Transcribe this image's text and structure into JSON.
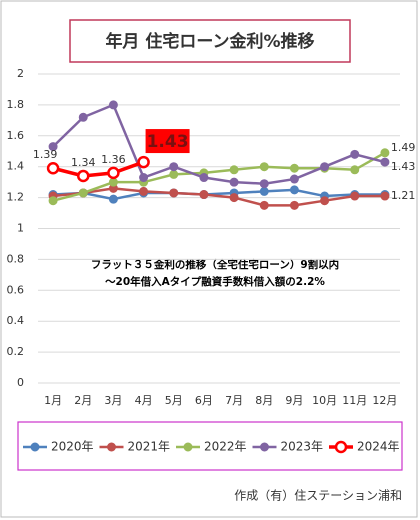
{
  "chart_data": {
    "type": "line",
    "title": "年月 住宅ローン金利%推移",
    "annotations": [
      "フラット３５金利の推移（全宅住宅ローン）9割以内",
      "～20年借入Aタイプ融資手数料借入額の2.2%"
    ],
    "footer": "作成（有）住ステーション浦和",
    "categories": [
      "1月",
      "2月",
      "3月",
      "4月",
      "5月",
      "6月",
      "7月",
      "8月",
      "9月",
      "10月",
      "11月",
      "12月"
    ],
    "series": [
      {
        "name": "2020年",
        "color": "#4f81bd",
        "values": [
          1.22,
          1.23,
          1.19,
          1.23,
          1.23,
          1.22,
          1.23,
          1.24,
          1.25,
          1.21,
          1.22,
          1.22
        ]
      },
      {
        "name": "2021年",
        "color": "#c0504d",
        "values": [
          1.21,
          1.23,
          1.26,
          1.24,
          1.23,
          1.22,
          1.2,
          1.15,
          1.15,
          1.18,
          1.21,
          1.21
        ],
        "value_labels": [
          null,
          null,
          null,
          null,
          null,
          null,
          null,
          null,
          null,
          null,
          null,
          "1.21"
        ]
      },
      {
        "name": "2022年",
        "color": "#9bbb59",
        "values": [
          1.18,
          1.23,
          1.3,
          1.3,
          1.35,
          1.36,
          1.38,
          1.4,
          1.39,
          1.39,
          1.38,
          1.49
        ],
        "value_labels": [
          null,
          null,
          null,
          null,
          null,
          null,
          null,
          null,
          null,
          null,
          null,
          "1.49"
        ]
      },
      {
        "name": "2023年",
        "color": "#8064a2",
        "values": [
          1.53,
          1.72,
          1.8,
          1.33,
          1.4,
          1.33,
          1.3,
          1.29,
          1.32,
          1.4,
          1.48,
          1.43
        ],
        "value_labels": [
          null,
          null,
          null,
          null,
          null,
          null,
          null,
          null,
          null,
          null,
          null,
          "1.43"
        ]
      },
      {
        "name": "2024年",
        "color": "#ff0000",
        "highlight": 3,
        "values": [
          1.39,
          1.34,
          1.36,
          1.43,
          null,
          null,
          null,
          null,
          null,
          null,
          null,
          null
        ],
        "value_labels": [
          "1.39",
          "1.34",
          "1.36",
          "1.43",
          null,
          null,
          null,
          null,
          null,
          null,
          null,
          null
        ]
      }
    ],
    "ylim": [
      0,
      2
    ],
    "yticks": [
      0,
      0.2,
      0.4,
      0.6,
      0.8,
      1,
      1.2,
      1.4,
      1.6,
      1.8,
      2
    ],
    "grid": true,
    "legend": "bottom"
  }
}
